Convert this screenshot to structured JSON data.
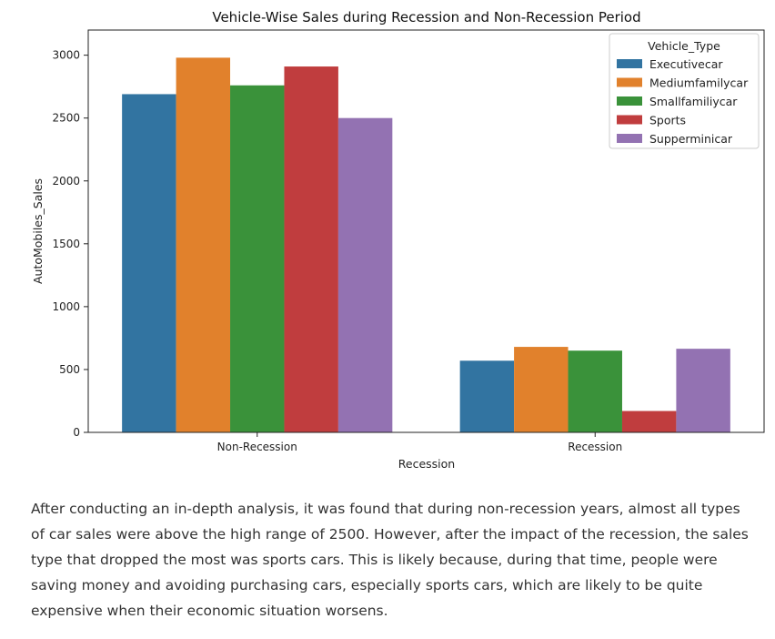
{
  "chart_data": {
    "type": "bar",
    "title": "Vehicle-Wise Sales during Recession and Non-Recession Period",
    "xlabel": "Recession",
    "ylabel": "AutoMobiles_Sales",
    "categories": [
      "Non-Recession",
      "Recession"
    ],
    "ylim": [
      0,
      3200
    ],
    "yticks": [
      0,
      500,
      1000,
      1500,
      2000,
      2500,
      3000
    ],
    "grid": false,
    "legend": {
      "title": "Vehicle_Type",
      "position": "top-right"
    },
    "series": [
      {
        "name": "Executivecar",
        "color": "#3274a1",
        "values": [
          2690,
          570
        ]
      },
      {
        "name": "Mediumfamilycar",
        "color": "#e1812c",
        "values": [
          2980,
          680
        ]
      },
      {
        "name": "Smallfamiliycar",
        "color": "#3a923a",
        "values": [
          2760,
          650
        ]
      },
      {
        "name": "Sports",
        "color": "#c03d3e",
        "values": [
          2910,
          170
        ]
      },
      {
        "name": "Supperminicar",
        "color": "#9372b2",
        "values": [
          2500,
          665
        ]
      }
    ]
  },
  "commentary": "After conducting an in-depth analysis, it was found that during non-recession years, almost all types of car sales were above the high range of 2500. However, after the impact of the recession, the sales type that dropped the most was sports cars. This is likely because, during that time, people were saving money and avoiding purchasing cars, especially sports cars, which are likely to be quite expensive when their economic situation worsens."
}
